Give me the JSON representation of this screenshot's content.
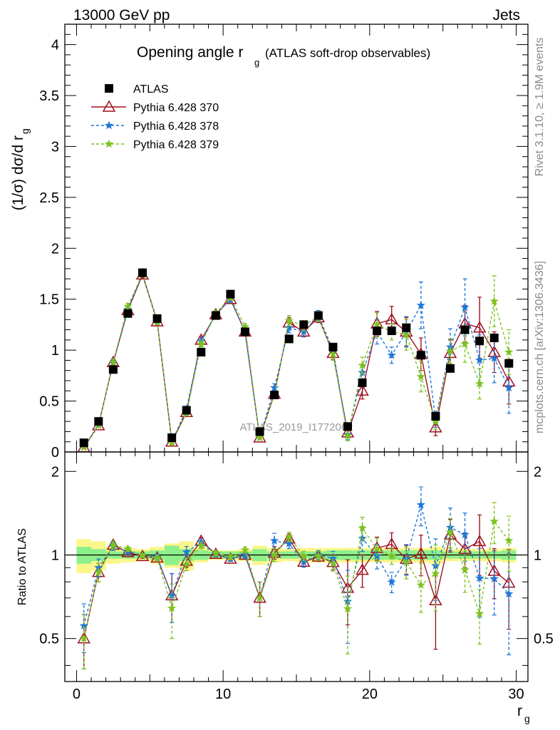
{
  "header": {
    "left": "13000 GeV pp",
    "right": "Jets"
  },
  "side": {
    "rivet": "Rivet 3.1.10, ≥ 1.9M events",
    "mcplots": "mcplots.cern.ch [arXiv:1306.3436]"
  },
  "chart_data": {
    "type": "scatter",
    "title_main": "Opening angle r",
    "title_sub": "g",
    "title_rest": "(ATLAS soft-drop observables)",
    "watermark": "ATLAS_2019_I1772062",
    "ylabel": "(1/σ) dσ/d r",
    "ylabel_sub": "g",
    "xlabel": "r",
    "xlabel_sub": "g",
    "ratio_ylabel": "Ratio to ATLAS",
    "xlim": [
      -0.8,
      30.8
    ],
    "ylim": [
      0,
      4.2
    ],
    "ratio_ylim": [
      0.35,
      2.35
    ],
    "ratio_log": true,
    "x_ticks": [
      "0",
      "10",
      "20",
      "30"
    ],
    "y_ticks": [
      "0",
      "0.5",
      "1",
      "1.5",
      "2",
      "2.5",
      "3",
      "3.5",
      "4"
    ],
    "ratio_ticks": [
      "0.5",
      "1",
      "2"
    ],
    "x": [
      0.5,
      1.5,
      2.5,
      3.5,
      4.5,
      5.5,
      6.5,
      7.5,
      8.5,
      9.5,
      10.5,
      11.5,
      12.5,
      13.5,
      14.5,
      15.5,
      16.5,
      17.5,
      18.5,
      19.5,
      20.5,
      21.5,
      22.5,
      23.5,
      24.5,
      25.5,
      26.5,
      27.5,
      28.5,
      29.5
    ],
    "legend_position": "top-left",
    "series": [
      {
        "name": "ATLAS",
        "color": "#000000",
        "marker": "square",
        "values": [
          0.09,
          0.3,
          0.81,
          1.36,
          1.76,
          1.31,
          0.14,
          0.41,
          0.98,
          1.34,
          1.55,
          1.18,
          0.2,
          0.56,
          1.11,
          1.25,
          1.34,
          1.03,
          0.25,
          0.68,
          1.19,
          1.19,
          1.22,
          0.95,
          0.35,
          0.82,
          1.2,
          1.09,
          1.12,
          0.87
        ]
      },
      {
        "name": "Pythia 6.428 370",
        "color": "#a01020",
        "marker": "triangle",
        "values": [
          0.045,
          0.26,
          0.88,
          1.39,
          1.74,
          1.28,
          0.1,
          0.39,
          1.1,
          1.35,
          1.5,
          1.18,
          0.14,
          0.57,
          1.27,
          1.18,
          1.32,
          0.97,
          0.19,
          0.6,
          1.26,
          1.3,
          1.18,
          0.96,
          0.24,
          0.97,
          1.26,
          1.22,
          0.98,
          0.69
        ],
        "errors": [
          0.01,
          0.02,
          0.03,
          0.03,
          0.03,
          0.03,
          0.02,
          0.02,
          0.03,
          0.03,
          0.03,
          0.03,
          0.02,
          0.03,
          0.05,
          0.05,
          0.05,
          0.06,
          0.05,
          0.08,
          0.12,
          0.13,
          0.14,
          0.16,
          0.08,
          0.13,
          0.18,
          0.3,
          0.2,
          0.22
        ]
      },
      {
        "name": "Pythia 6.428 378",
        "color": "#1f77d8",
        "marker": "star",
        "values": [
          0.05,
          0.27,
          0.87,
          1.4,
          1.75,
          1.29,
          0.1,
          0.42,
          1.09,
          1.35,
          1.5,
          1.18,
          0.14,
          0.63,
          1.22,
          1.18,
          1.34,
          1.0,
          0.17,
          0.78,
          1.18,
          0.95,
          1.18,
          1.44,
          0.32,
          1.03,
          1.42,
          0.9,
          0.92,
          0.63
        ],
        "errors": [
          0.01,
          0.02,
          0.03,
          0.03,
          0.03,
          0.03,
          0.02,
          0.02,
          0.03,
          0.03,
          0.03,
          0.03,
          0.02,
          0.04,
          0.05,
          0.05,
          0.05,
          0.06,
          0.05,
          0.08,
          0.12,
          0.08,
          0.15,
          0.23,
          0.08,
          0.18,
          0.28,
          0.25,
          0.24,
          0.25
        ]
      },
      {
        "name": "Pythia 6.428 379",
        "color": "#7dc21e",
        "marker": "star",
        "values": [
          0.045,
          0.26,
          0.88,
          1.43,
          1.75,
          1.28,
          0.09,
          0.38,
          1.06,
          1.36,
          1.52,
          1.23,
          0.14,
          0.56,
          1.29,
          1.24,
          1.33,
          0.96,
          0.16,
          0.85,
          1.25,
          1.18,
          1.15,
          0.74,
          0.3,
          0.99,
          1.06,
          0.67,
          1.48,
          0.98
        ],
        "errors": [
          0.01,
          0.02,
          0.03,
          0.03,
          0.03,
          0.03,
          0.02,
          0.02,
          0.03,
          0.03,
          0.03,
          0.03,
          0.02,
          0.03,
          0.05,
          0.05,
          0.05,
          0.06,
          0.05,
          0.08,
          0.12,
          0.08,
          0.15,
          0.15,
          0.08,
          0.12,
          0.18,
          0.15,
          0.25,
          0.22
        ]
      }
    ],
    "band_inner": [
      0.07,
      0.05,
      0.03,
      0.03,
      0.03,
      0.04,
      0.08,
      0.05,
      0.04,
      0.03,
      0.03,
      0.03,
      0.05,
      0.03,
      0.03,
      0.03,
      0.03,
      0.04,
      0.04,
      0.04,
      0.04,
      0.04,
      0.04,
      0.04,
      0.04,
      0.03,
      0.03,
      0.03,
      0.03,
      0.04
    ],
    "band_outer": [
      0.14,
      0.12,
      0.07,
      0.06,
      0.05,
      0.07,
      0.1,
      0.12,
      0.06,
      0.04,
      0.04,
      0.05,
      0.08,
      0.06,
      0.05,
      0.06,
      0.06,
      0.06,
      0.06,
      0.06,
      0.06,
      0.06,
      0.06,
      0.06,
      0.07,
      0.05,
      0.05,
      0.05,
      0.05,
      0.06
    ]
  }
}
